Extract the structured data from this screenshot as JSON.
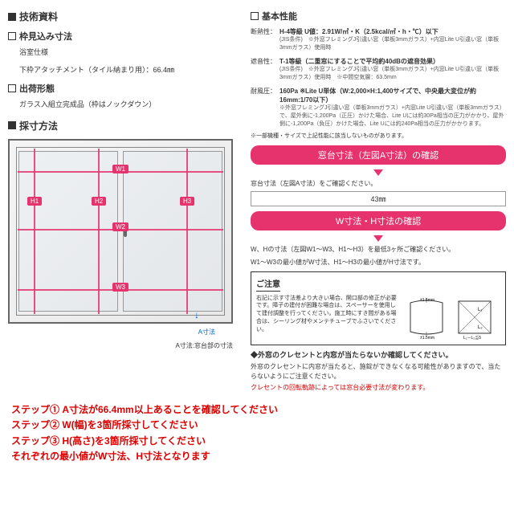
{
  "left": {
    "tech_title": "技術資料",
    "frame_title": "枠見込み寸法",
    "frame_sub1": "浴室仕様",
    "frame_sub2": "下枠アタッチメント（タイル納まり用）：66.4㎜",
    "ship_title": "出荷形態",
    "ship_sub": "ガラス入組立完成品（枠はノックダウン）",
    "measure_title": "採寸方法",
    "diagram_caption": "A寸法:窓台部の寸法",
    "a_dim_label": "A寸法",
    "labels": {
      "W1": "W1",
      "W2": "W2",
      "W3": "W3",
      "H1": "H1",
      "H2": "H2",
      "H3": "H3"
    }
  },
  "right": {
    "basic_title": "基本性能",
    "specs": [
      {
        "label": "断熱性：",
        "main": "H-4等級 U値：2.91W/㎡・K（2.5kcal/㎡・h・℃）以下",
        "note": "(JIS条件)　※外窓フレミングJ引違い窓（単板3mmガラス）+内窓Lite U引違い窓（単板3mmガラス）使用時"
      },
      {
        "label": "遮音性：",
        "main": "T-1等級（二重窓にすることで平均約40dBの遮音効果）",
        "note": "(JIS条件)　※外窓フレミングJ引違い窓（単板3mmガラス）+内窓Lite U引違い窓（単板3mmガラス）使用時　※中間空気層：63.5mm"
      },
      {
        "label": "耐風圧：",
        "main": "160Pa ※Lite U単体（W:2,000×H:1,400サイズで、中央最大変位が約16mm:1/70以下）",
        "note": "※外窓フレミングJ引違い窓（単板3mmガラス）+内窓Lite U引違い窓（単板3mmガラス）で、屋外側に-1,200Pa（正圧）かけた場合、Lite Uには約30Pa相当の圧力がかかり、屋外側に-1,200Pa（負圧）かけた場合、Lite Uには約240Pa相当の圧力がかかります。"
      }
    ],
    "spec_footnote": "※一部機種・サイズで上記性能に該当しないものがあります。",
    "pink1": "窓台寸法（左図A寸法）の確認",
    "pink1_text": "窓台寸法（左図A寸法）をご確認ください。",
    "pink1_input": "43㎜",
    "pink2": "W寸法・H寸法の確認",
    "pink2_text1": "W、Hの寸法（左図W1～W3、H1～H3）を最低3ヶ所ご確認ください。",
    "pink2_text2": "W1～W3の最小値がW寸法、H1～H3の最小値がH寸法です。",
    "caution_title": "ご注意",
    "caution_text": "右記に示す寸法差より大きい場合、開口部の修正が必要です。障子の建付が困難な場合は、スペーサーを使用して建付調整を行ってください。施工時にすき間がある場合は、シーリング材やメンテチューブでふさいでください。",
    "shape1_top": "±1.5mm",
    "shape1_bot": "±1.5mm",
    "shape2_l1": "L₁",
    "shape2_l2": "L₂",
    "shape2_diff": "L₁－L₂≦5",
    "bullet1": "◆外窓のクレセントと内窓が当たらないか確認してください。",
    "bullet1_sub": "外窓のクレセントに内窓が当たると、施錠ができなくなる可能性がありますので、当たらないようにご注意ください。",
    "bullet2": "クレセントの回転軌跡によっては窓台必要寸法が変わります。"
  },
  "steps": {
    "s1": "ステップ① A寸法が66.4mm以上あることを確認してください",
    "s2": "ステップ② W(幅)を3箇所採寸してください",
    "s3": "ステップ③ H(高さ)を3箇所採寸してください",
    "s4": "それぞれの最小値がW寸法、H寸法となります"
  },
  "colors": {
    "pink": "#e6336e",
    "red": "#d00",
    "blue": "#06c"
  }
}
